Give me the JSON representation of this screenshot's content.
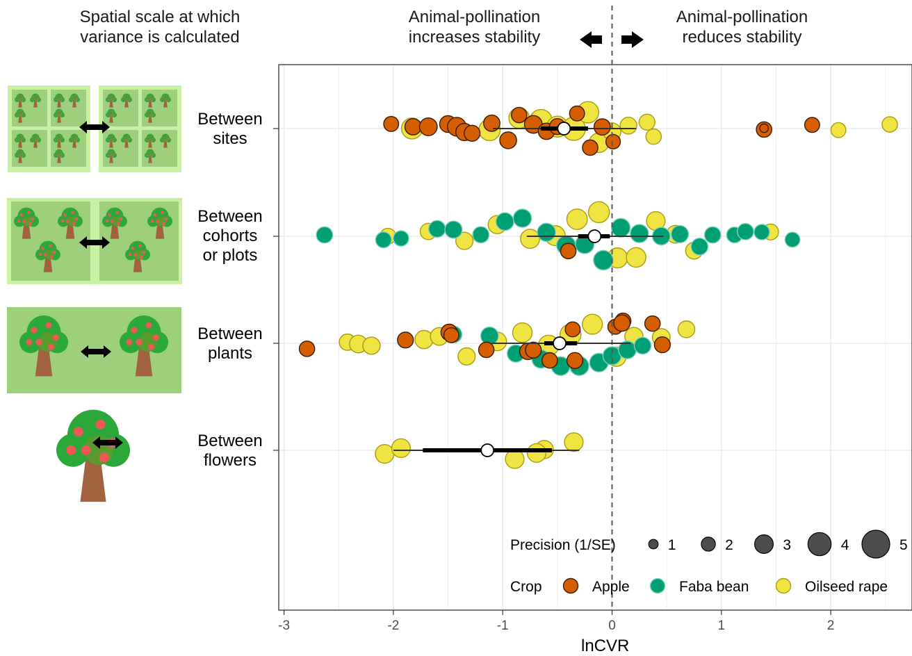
{
  "headers": {
    "spatial_scale": [
      "Spatial scale at which",
      "variance is calculated"
    ],
    "left_arrow_text": [
      "Animal-pollination",
      "increases stability"
    ],
    "right_arrow_text": [
      "Animal-pollination",
      "reduces stability"
    ]
  },
  "rows": [
    {
      "lines": [
        "Between",
        "sites"
      ],
      "icon": "paired-site-grids-icon"
    },
    {
      "lines": [
        "Between",
        "cohorts",
        "or plots"
      ],
      "icon": "paired-plots-icon"
    },
    {
      "lines": [
        "Between",
        "plants"
      ],
      "icon": "paired-trees-icon"
    },
    {
      "lines": [
        "Between",
        "flowers"
      ],
      "icon": "single-tree-icon"
    }
  ],
  "colors": {
    "Apple": "#d55e00",
    "Faba bean": "#009e73",
    "Oilseed rape": "#f0e442",
    "estimate_point": "#ffffff",
    "ci_line": "#000000",
    "grid": "#ebebeb",
    "zero_line": "#555555"
  },
  "chart_data": {
    "type": "scatter",
    "title": "",
    "xlabel": "lnCVR",
    "ylabel": "",
    "xlim": [
      -3.05,
      2.7
    ],
    "xticks": [
      -3,
      -2,
      -1,
      0,
      1,
      2
    ],
    "tick_labels": [
      "-3",
      "-2",
      "-1",
      "0",
      "1",
      "2"
    ],
    "categories": [
      "Between sites",
      "Between cohorts or plots",
      "Between plants",
      "Between flowers"
    ],
    "grid": true,
    "reference_line": {
      "x": 0,
      "style": "dashed"
    },
    "estimates": [
      {
        "category": "Between sites",
        "mean": -0.44,
        "ci95": [
          -1.09,
          0.22
        ],
        "ci50": [
          -0.65,
          -0.22
        ]
      },
      {
        "category": "Between cohorts or plots",
        "mean": -0.16,
        "ci95": [
          -0.78,
          0.47
        ],
        "ci50": [
          -0.31,
          -0.02
        ]
      },
      {
        "category": "Between plants",
        "mean": -0.48,
        "ci95": [
          -1.1,
          0.17
        ],
        "ci50": [
          -0.62,
          -0.32
        ]
      },
      {
        "category": "Between flowers",
        "mean": -1.14,
        "ci95": [
          -2.0,
          -0.3
        ],
        "ci50": [
          -1.73,
          -0.55
        ]
      }
    ],
    "series": [
      {
        "name": "Apple",
        "points": [
          {
            "category": "Between sites",
            "x": -2.02,
            "precision": 2.2
          },
          {
            "category": "Between sites",
            "x": -1.82,
            "precision": 2.5
          },
          {
            "category": "Between sites",
            "x": -1.68,
            "precision": 2.8
          },
          {
            "category": "Between sites",
            "x": -1.5,
            "precision": 2.6
          },
          {
            "category": "Between sites",
            "x": -1.42,
            "precision": 3.0
          },
          {
            "category": "Between sites",
            "x": -1.35,
            "precision": 2.7
          },
          {
            "category": "Between sites",
            "x": -1.28,
            "precision": 2.4
          },
          {
            "category": "Between sites",
            "x": -1.1,
            "precision": 2.5
          },
          {
            "category": "Between sites",
            "x": -0.95,
            "precision": 2.6
          },
          {
            "category": "Between sites",
            "x": -0.85,
            "precision": 2.3
          },
          {
            "category": "Between sites",
            "x": -0.72,
            "precision": 2.8
          },
          {
            "category": "Between sites",
            "x": -0.6,
            "precision": 2.5
          },
          {
            "category": "Between sites",
            "x": -0.5,
            "precision": 2.4
          },
          {
            "category": "Between sites",
            "x": -0.32,
            "precision": 2.2
          },
          {
            "category": "Between sites",
            "x": -0.2,
            "precision": 2.3
          },
          {
            "category": "Between sites",
            "x": -0.09,
            "precision": 2.5
          },
          {
            "category": "Between sites",
            "x": 0.01,
            "precision": 2.1
          },
          {
            "category": "Between sites",
            "x": 1.39,
            "precision": 2.3
          },
          {
            "category": "Between sites",
            "x": 1.39,
            "precision": 0.8
          },
          {
            "category": "Between sites",
            "x": 1.83,
            "precision": 2.2
          },
          {
            "category": "Between cohorts or plots",
            "x": -0.4,
            "precision": 2.3
          },
          {
            "category": "Between plants",
            "x": -2.79,
            "precision": 2.3
          },
          {
            "category": "Between plants",
            "x": -1.89,
            "precision": 2.4
          },
          {
            "category": "Between plants",
            "x": -1.49,
            "precision": 2.5
          },
          {
            "category": "Between plants",
            "x": -1.47,
            "precision": 2.2
          },
          {
            "category": "Between plants",
            "x": -1.15,
            "precision": 2.3
          },
          {
            "category": "Between plants",
            "x": -0.77,
            "precision": 2.5
          },
          {
            "category": "Between plants",
            "x": -0.72,
            "precision": 2.4
          },
          {
            "category": "Between plants",
            "x": -0.57,
            "precision": 2.3
          },
          {
            "category": "Between plants",
            "x": -0.36,
            "precision": 2.2
          },
          {
            "category": "Between plants",
            "x": -0.34,
            "precision": 2.4
          },
          {
            "category": "Between plants",
            "x": 0.03,
            "precision": 2.2
          },
          {
            "category": "Between plants",
            "x": 0.1,
            "precision": 2.4
          },
          {
            "category": "Between plants",
            "x": 0.09,
            "precision": 2.5
          },
          {
            "category": "Between plants",
            "x": 0.37,
            "precision": 2.3
          },
          {
            "category": "Between plants",
            "x": 0.46,
            "precision": 2.4
          }
        ]
      },
      {
        "name": "Faba bean",
        "points": [
          {
            "category": "Between cohorts or plots",
            "x": -2.63,
            "precision": 2.5
          },
          {
            "category": "Between cohorts or plots",
            "x": -2.09,
            "precision": 2.4
          },
          {
            "category": "Between cohorts or plots",
            "x": -1.93,
            "precision": 2.3
          },
          {
            "category": "Between cohorts or plots",
            "x": -1.6,
            "precision": 2.6
          },
          {
            "category": "Between cohorts or plots",
            "x": -1.45,
            "precision": 2.7
          },
          {
            "category": "Between cohorts or plots",
            "x": -1.2,
            "precision": 2.5
          },
          {
            "category": "Between cohorts or plots",
            "x": -0.98,
            "precision": 2.8
          },
          {
            "category": "Between cohorts or plots",
            "x": -0.82,
            "precision": 2.9
          },
          {
            "category": "Between cohorts or plots",
            "x": -0.6,
            "precision": 2.9
          },
          {
            "category": "Between cohorts or plots",
            "x": -0.42,
            "precision": 3.1
          },
          {
            "category": "Between cohorts or plots",
            "x": -0.25,
            "precision": 3.0
          },
          {
            "category": "Between cohorts or plots",
            "x": -0.08,
            "precision": 3.2
          },
          {
            "category": "Between cohorts or plots",
            "x": 0.08,
            "precision": 3.0
          },
          {
            "category": "Between cohorts or plots",
            "x": 0.25,
            "precision": 2.9
          },
          {
            "category": "Between cohorts or plots",
            "x": 0.45,
            "precision": 2.8
          },
          {
            "category": "Between cohorts or plots",
            "x": 0.62,
            "precision": 2.7
          },
          {
            "category": "Between cohorts or plots",
            "x": 0.8,
            "precision": 2.6
          },
          {
            "category": "Between cohorts or plots",
            "x": 0.92,
            "precision": 2.5
          },
          {
            "category": "Between cohorts or plots",
            "x": 1.12,
            "precision": 2.4
          },
          {
            "category": "Between cohorts or plots",
            "x": 1.22,
            "precision": 2.5
          },
          {
            "category": "Between cohorts or plots",
            "x": 1.37,
            "precision": 2.3
          },
          {
            "category": "Between cohorts or plots",
            "x": 1.65,
            "precision": 2.2
          },
          {
            "category": "Between plants",
            "x": -1.45,
            "precision": 2.6
          },
          {
            "category": "Between plants",
            "x": -1.12,
            "precision": 2.8
          },
          {
            "category": "Between plants",
            "x": -0.88,
            "precision": 2.7
          },
          {
            "category": "Between plants",
            "x": -0.65,
            "precision": 2.9
          },
          {
            "category": "Between plants",
            "x": -0.47,
            "precision": 3.0
          },
          {
            "category": "Between plants",
            "x": -0.3,
            "precision": 3.1
          },
          {
            "category": "Between plants",
            "x": -0.12,
            "precision": 3.0
          },
          {
            "category": "Between plants",
            "x": 0.0,
            "precision": 2.9
          },
          {
            "category": "Between plants",
            "x": 0.14,
            "precision": 2.8
          },
          {
            "category": "Between plants",
            "x": 0.28,
            "precision": 2.6
          }
        ]
      },
      {
        "name": "Oilseed rape",
        "points": [
          {
            "category": "Between sites",
            "x": -1.83,
            "precision": 3.5
          },
          {
            "category": "Between sites",
            "x": -1.12,
            "precision": 3.6
          },
          {
            "category": "Between sites",
            "x": -0.85,
            "precision": 3.4
          },
          {
            "category": "Between sites",
            "x": -0.65,
            "precision": 3.8
          },
          {
            "category": "Between sites",
            "x": -0.5,
            "precision": 3.5
          },
          {
            "category": "Between sites",
            "x": -0.35,
            "precision": 4.0
          },
          {
            "category": "Between sites",
            "x": -0.22,
            "precision": 3.6
          },
          {
            "category": "Between sites",
            "x": -0.12,
            "precision": 3.2
          },
          {
            "category": "Between sites",
            "x": 0.0,
            "precision": 2.8
          },
          {
            "category": "Between sites",
            "x": 0.15,
            "precision": 2.6
          },
          {
            "category": "Between sites",
            "x": 0.32,
            "precision": 2.4
          },
          {
            "category": "Between sites",
            "x": 0.38,
            "precision": 2.3
          },
          {
            "category": "Between sites",
            "x": 2.07,
            "precision": 2.2
          },
          {
            "category": "Between sites",
            "x": 2.54,
            "precision": 2.3
          },
          {
            "category": "Between cohorts or plots",
            "x": -2.05,
            "precision": 2.4
          },
          {
            "category": "Between cohorts or plots",
            "x": -1.68,
            "precision": 2.5
          },
          {
            "category": "Between cohorts or plots",
            "x": -1.35,
            "precision": 2.7
          },
          {
            "category": "Between cohorts or plots",
            "x": -1.05,
            "precision": 2.9
          },
          {
            "category": "Between cohorts or plots",
            "x": -0.75,
            "precision": 3.1
          },
          {
            "category": "Between cohorts or plots",
            "x": -0.52,
            "precision": 3.3
          },
          {
            "category": "Between cohorts or plots",
            "x": -0.32,
            "precision": 3.4
          },
          {
            "category": "Between cohorts or plots",
            "x": -0.12,
            "precision": 3.5
          },
          {
            "category": "Between cohorts or plots",
            "x": 0.05,
            "precision": 3.3
          },
          {
            "category": "Between cohorts or plots",
            "x": 0.22,
            "precision": 3.2
          },
          {
            "category": "Between cohorts or plots",
            "x": 0.4,
            "precision": 3.0
          },
          {
            "category": "Between cohorts or plots",
            "x": 0.58,
            "precision": 2.8
          },
          {
            "category": "Between cohorts or plots",
            "x": 0.75,
            "precision": 2.6
          },
          {
            "category": "Between cohorts or plots",
            "x": 1.45,
            "precision": 2.4
          },
          {
            "category": "Between plants",
            "x": -2.42,
            "precision": 2.5
          },
          {
            "category": "Between plants",
            "x": -2.32,
            "precision": 2.8
          },
          {
            "category": "Between plants",
            "x": -2.2,
            "precision": 2.7
          },
          {
            "category": "Between plants",
            "x": -1.72,
            "precision": 2.9
          },
          {
            "category": "Between plants",
            "x": -1.58,
            "precision": 2.8
          },
          {
            "category": "Between plants",
            "x": -1.33,
            "precision": 2.7
          },
          {
            "category": "Between plants",
            "x": -1.05,
            "precision": 3.0
          },
          {
            "category": "Between plants",
            "x": -0.82,
            "precision": 3.2
          },
          {
            "category": "Between plants",
            "x": -0.58,
            "precision": 3.4
          },
          {
            "category": "Between plants",
            "x": -0.38,
            "precision": 3.5
          },
          {
            "category": "Between plants",
            "x": -0.18,
            "precision": 3.3
          },
          {
            "category": "Between plants",
            "x": 0.04,
            "precision": 3.1
          },
          {
            "category": "Between plants",
            "x": 0.2,
            "precision": 2.9
          },
          {
            "category": "Between plants",
            "x": 0.45,
            "precision": 2.8
          },
          {
            "category": "Between plants",
            "x": 0.68,
            "precision": 2.6
          },
          {
            "category": "Between flowers",
            "x": -2.08,
            "precision": 3.0
          },
          {
            "category": "Between flowers",
            "x": -1.93,
            "precision": 3.0
          },
          {
            "category": "Between flowers",
            "x": -0.89,
            "precision": 3.0
          },
          {
            "category": "Between flowers",
            "x": -0.62,
            "precision": 2.9
          },
          {
            "category": "Between flowers",
            "x": -0.35,
            "precision": 3.0
          },
          {
            "category": "Between flowers",
            "x": -0.69,
            "precision": 3.0
          }
        ]
      }
    ],
    "legend": {
      "placement": "bottom-right",
      "size_title": "Precision (1/SE)",
      "size_values": [
        1,
        2,
        3,
        4,
        5
      ],
      "size_labels": [
        "1",
        "2",
        "3",
        "4",
        "5"
      ],
      "color_title": "Crop",
      "color_labels": [
        "Apple",
        "Faba bean",
        "Oilseed rape"
      ]
    }
  }
}
